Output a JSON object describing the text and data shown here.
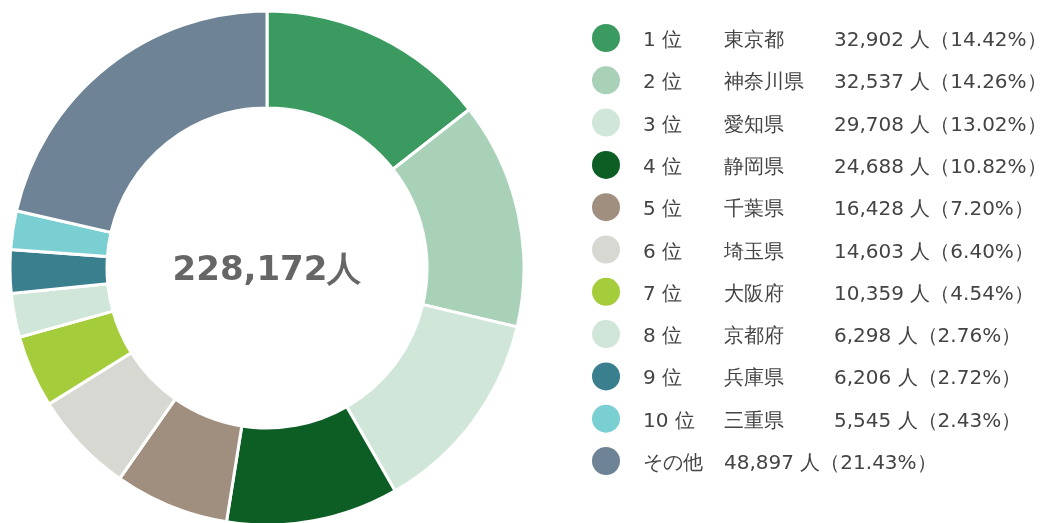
{
  "chart_data": {
    "type": "donut",
    "legend": "right",
    "categories": [
      "1 位　東京都　32,902 人（14.42%）",
      "2 位　神奈川県　32,537 人（14.26%）",
      "3 位　愛知県　29,708 人（13.02%）",
      "4 位　静岡県　24,688 人（10.82%）",
      "5 位　千葉県　16,428 人（7.20%）",
      "6 位　埼玉県　14,603 人（6.40%）",
      "7 位　大阪府　10,359 人（4.54%）",
      "8 位　京都府　6,298 人（2.76%）",
      "9 位　兵庫県　6,206 人（2.72%）",
      "10 位　三重県　5,545 人（2.43%）",
      "その他　48,897 人（21.43%）"
    ],
    "values": [
      32902,
      32537,
      29708,
      24688,
      16428,
      14603,
      10359,
      6298,
      6206,
      5545,
      48897
    ],
    "colors": [
      "#3a9a5f",
      "#a8d1b8",
      "#cfe6d8",
      "#0d5e25",
      "#a08e7e",
      "#d8d8d3",
      "#a5cc3a",
      "#cfe6d8",
      "#3a7f8e",
      "#7acfd3",
      "#6e8396"
    ],
    "annotations": [
      "228,172人"
    ]
  }
}
